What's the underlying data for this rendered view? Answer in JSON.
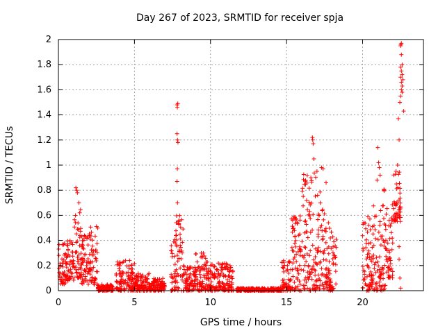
{
  "chart_data": {
    "type": "scatter",
    "title": "Day 267 of 2023, SRMTID for receiver spja",
    "xlabel": "GPS time / hours",
    "ylabel": "SRMTID / TECUs",
    "xlim": [
      0,
      24
    ],
    "ylim": [
      0,
      2
    ],
    "xticks": [
      "0",
      "5",
      "10",
      "15",
      "20"
    ],
    "yticks": [
      "0",
      "0.2",
      "0.4",
      "0.6",
      "0.8",
      "1",
      "1.2",
      "1.4",
      "1.6",
      "1.8",
      "2"
    ],
    "grid": true,
    "marker": "+",
    "marker_color": "#ff0000",
    "series": [
      {
        "name": "SRMTID",
        "segments": [
          {
            "x_start": 0.0,
            "x_end": 0.5,
            "low": 0.05,
            "high": 0.38
          },
          {
            "x_start": 0.5,
            "x_end": 1.0,
            "low": 0.08,
            "high": 0.4
          },
          {
            "x_start": 1.0,
            "x_end": 1.5,
            "low": 0.1,
            "high": 0.65
          },
          {
            "x_start": 1.5,
            "x_end": 2.0,
            "low": 0.05,
            "high": 0.45
          },
          {
            "x_start": 2.0,
            "x_end": 2.6,
            "low": 0.05,
            "high": 0.55
          },
          {
            "x_start": 2.6,
            "x_end": 3.6,
            "low": 0.0,
            "high": 0.05
          },
          {
            "x_start": 3.8,
            "x_end": 5.0,
            "low": 0.0,
            "high": 0.24
          },
          {
            "x_start": 5.0,
            "x_end": 6.0,
            "low": 0.0,
            "high": 0.14
          },
          {
            "x_start": 6.0,
            "x_end": 7.0,
            "low": 0.0,
            "high": 0.1
          },
          {
            "x_start": 7.4,
            "x_end": 7.7,
            "low": 0.0,
            "high": 0.45
          },
          {
            "x_start": 7.7,
            "x_end": 8.2,
            "low": 0.0,
            "high": 0.6
          },
          {
            "x_start": 8.2,
            "x_end": 9.0,
            "low": 0.0,
            "high": 0.2
          },
          {
            "x_start": 9.0,
            "x_end": 10.0,
            "low": 0.0,
            "high": 0.3
          },
          {
            "x_start": 10.0,
            "x_end": 11.5,
            "low": 0.0,
            "high": 0.22
          },
          {
            "x_start": 11.7,
            "x_end": 14.7,
            "low": 0.0,
            "high": 0.02
          },
          {
            "x_start": 14.7,
            "x_end": 15.3,
            "low": 0.0,
            "high": 0.25
          },
          {
            "x_start": 15.3,
            "x_end": 16.0,
            "low": 0.0,
            "high": 0.6
          },
          {
            "x_start": 16.0,
            "x_end": 17.0,
            "low": 0.0,
            "high": 0.95
          },
          {
            "x_start": 17.0,
            "x_end": 17.6,
            "low": 0.0,
            "high": 0.8
          },
          {
            "x_start": 17.6,
            "x_end": 18.3,
            "low": 0.0,
            "high": 0.55
          },
          {
            "x_start": 20.0,
            "x_end": 20.5,
            "low": 0.0,
            "high": 0.6
          },
          {
            "x_start": 20.5,
            "x_end": 21.0,
            "low": 0.0,
            "high": 0.7
          },
          {
            "x_start": 21.0,
            "x_end": 21.5,
            "low": 0.0,
            "high": 0.85
          },
          {
            "x_start": 21.5,
            "x_end": 22.0,
            "low": 0.1,
            "high": 0.7
          },
          {
            "x_start": 22.0,
            "x_end": 22.5,
            "low": 0.55,
            "high": 0.95
          }
        ],
        "extra_points": [
          [
            1.15,
            0.82
          ],
          [
            1.2,
            0.8
          ],
          [
            1.25,
            0.78
          ],
          [
            1.35,
            0.7
          ],
          [
            1.4,
            0.62
          ],
          [
            7.8,
            1.48
          ],
          [
            7.82,
            1.46
          ],
          [
            7.85,
            1.49
          ],
          [
            7.8,
            1.25
          ],
          [
            7.83,
            1.2
          ],
          [
            7.86,
            1.18
          ],
          [
            7.82,
            0.97
          ],
          [
            7.8,
            0.87
          ],
          [
            7.83,
            0.7
          ],
          [
            7.9,
            0.55
          ],
          [
            16.7,
            1.22
          ],
          [
            16.72,
            1.2
          ],
          [
            16.75,
            1.17
          ],
          [
            16.8,
            1.05
          ],
          [
            17.3,
            0.98
          ],
          [
            17.4,
            0.97
          ],
          [
            16.6,
            0.9
          ],
          [
            17.6,
            0.86
          ],
          [
            17.0,
            0.95
          ],
          [
            21.0,
            1.14
          ],
          [
            21.05,
            1.02
          ],
          [
            21.1,
            0.98
          ],
          [
            21.15,
            0.92
          ],
          [
            20.95,
            0.88
          ],
          [
            22.2,
            0.95
          ],
          [
            22.3,
            1.0
          ],
          [
            22.4,
            1.2
          ],
          [
            22.35,
            1.37
          ],
          [
            22.45,
            1.5
          ],
          [
            22.5,
            1.55
          ],
          [
            22.55,
            1.6
          ],
          [
            22.6,
            1.63
          ],
          [
            22.55,
            1.66
          ],
          [
            22.5,
            1.7
          ],
          [
            22.6,
            1.72
          ],
          [
            22.55,
            1.75
          ],
          [
            22.5,
            1.78
          ],
          [
            22.6,
            1.8
          ],
          [
            22.55,
            1.88
          ],
          [
            22.5,
            1.95
          ],
          [
            22.55,
            1.97
          ],
          [
            22.52,
            1.96
          ],
          [
            22.6,
            1.58
          ],
          [
            22.7,
            1.43
          ],
          [
            22.65,
            1.68
          ],
          [
            22.4,
            0.35
          ],
          [
            22.45,
            0.1
          ],
          [
            22.5,
            0.02
          ],
          [
            22.4,
            0.25
          ]
        ]
      }
    ]
  }
}
